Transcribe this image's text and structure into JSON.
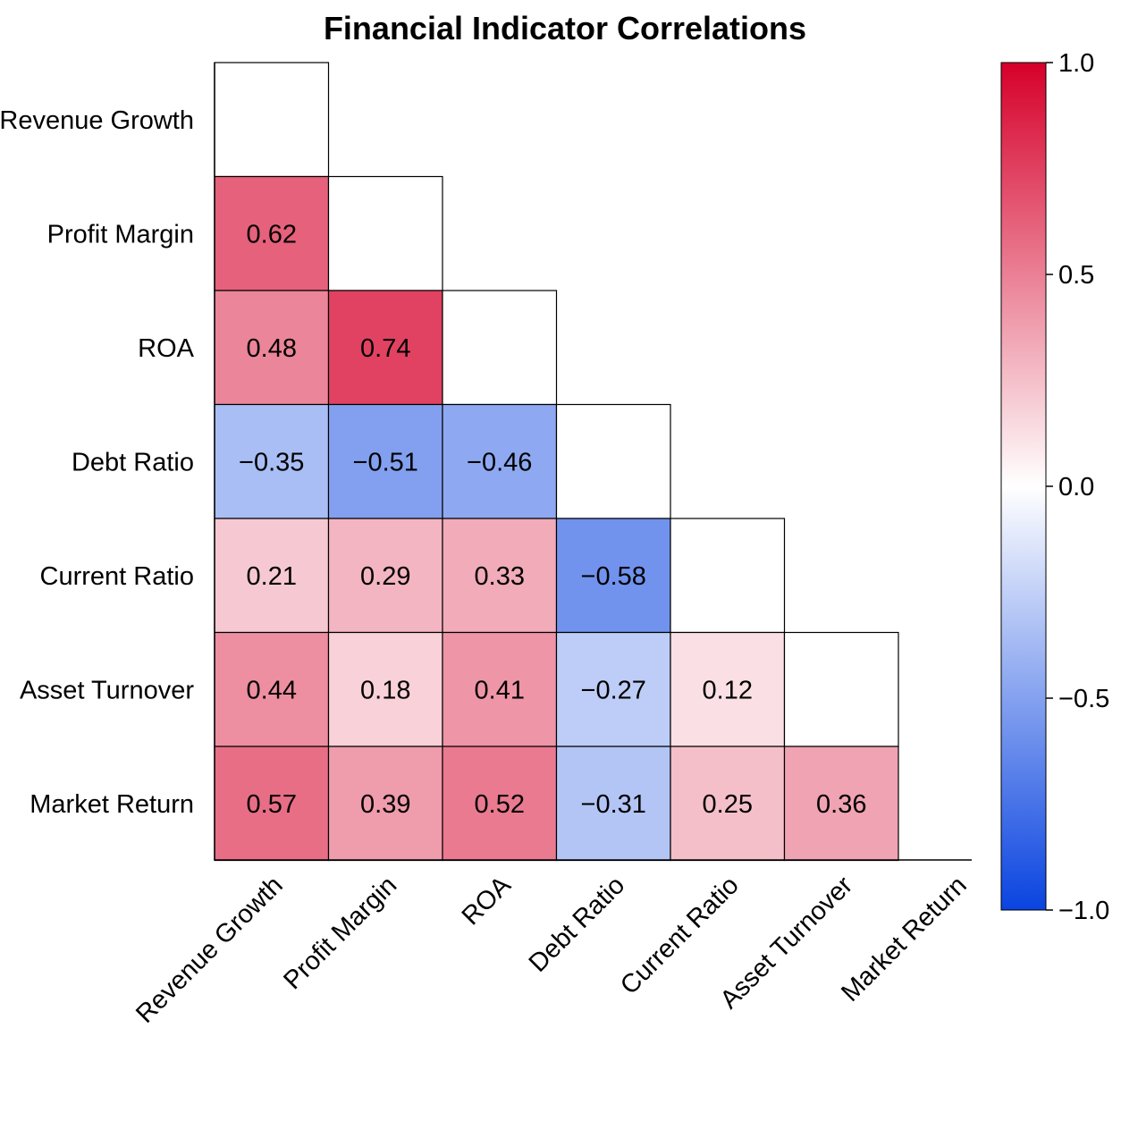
{
  "chart_data": {
    "type": "heatmap",
    "title": "Financial Indicator Correlations",
    "subtitle": "",
    "xlabel": "",
    "ylabel": "",
    "variables": [
      "Revenue Growth",
      "Profit Margin",
      "ROA",
      "Debt Ratio",
      "Current Ratio",
      "Asset Turnover",
      "Market Return"
    ],
    "mask": "upper-triangle-including-diagonal",
    "matrix": [
      [
        null,
        null,
        null,
        null,
        null,
        null,
        null
      ],
      [
        0.62,
        null,
        null,
        null,
        null,
        null,
        null
      ],
      [
        0.48,
        0.74,
        null,
        null,
        null,
        null,
        null
      ],
      [
        -0.35,
        -0.51,
        -0.46,
        null,
        null,
        null,
        null
      ],
      [
        0.21,
        0.29,
        0.33,
        -0.58,
        null,
        null,
        null
      ],
      [
        0.44,
        0.18,
        0.41,
        -0.27,
        0.12,
        null,
        null
      ],
      [
        0.57,
        0.39,
        0.52,
        -0.31,
        0.25,
        0.36,
        null
      ]
    ],
    "cell_labels": [
      [
        null,
        null,
        null,
        null,
        null,
        null,
        null
      ],
      [
        "0.62",
        null,
        null,
        null,
        null,
        null,
        null
      ],
      [
        "0.48",
        "0.74",
        null,
        null,
        null,
        null,
        null
      ],
      [
        "−0.35",
        "−0.51",
        "−0.46",
        null,
        null,
        null,
        null
      ],
      [
        "0.21",
        "0.29",
        "0.33",
        "−0.58",
        null,
        null,
        null
      ],
      [
        "0.44",
        "0.18",
        "0.41",
        "−0.27",
        "0.12",
        null,
        null
      ],
      [
        "0.57",
        "0.39",
        "0.52",
        "−0.31",
        "0.25",
        "0.36",
        null
      ]
    ],
    "colorbar": {
      "range": [
        -1.0,
        1.0
      ],
      "ticks": [
        1.0,
        0.5,
        0.0,
        -0.5,
        -1.0
      ],
      "tick_labels": [
        "1.0",
        "0.5",
        "0.0",
        "−0.5",
        "−1.0"
      ],
      "colormap": "diverging blue-white-red",
      "colors": {
        "low": "#0a44e0",
        "mid": "#ffffff",
        "high": "#d6002a"
      }
    },
    "x_tick_rotation": "45-degree",
    "grid": false,
    "legend": "colorbar right"
  }
}
